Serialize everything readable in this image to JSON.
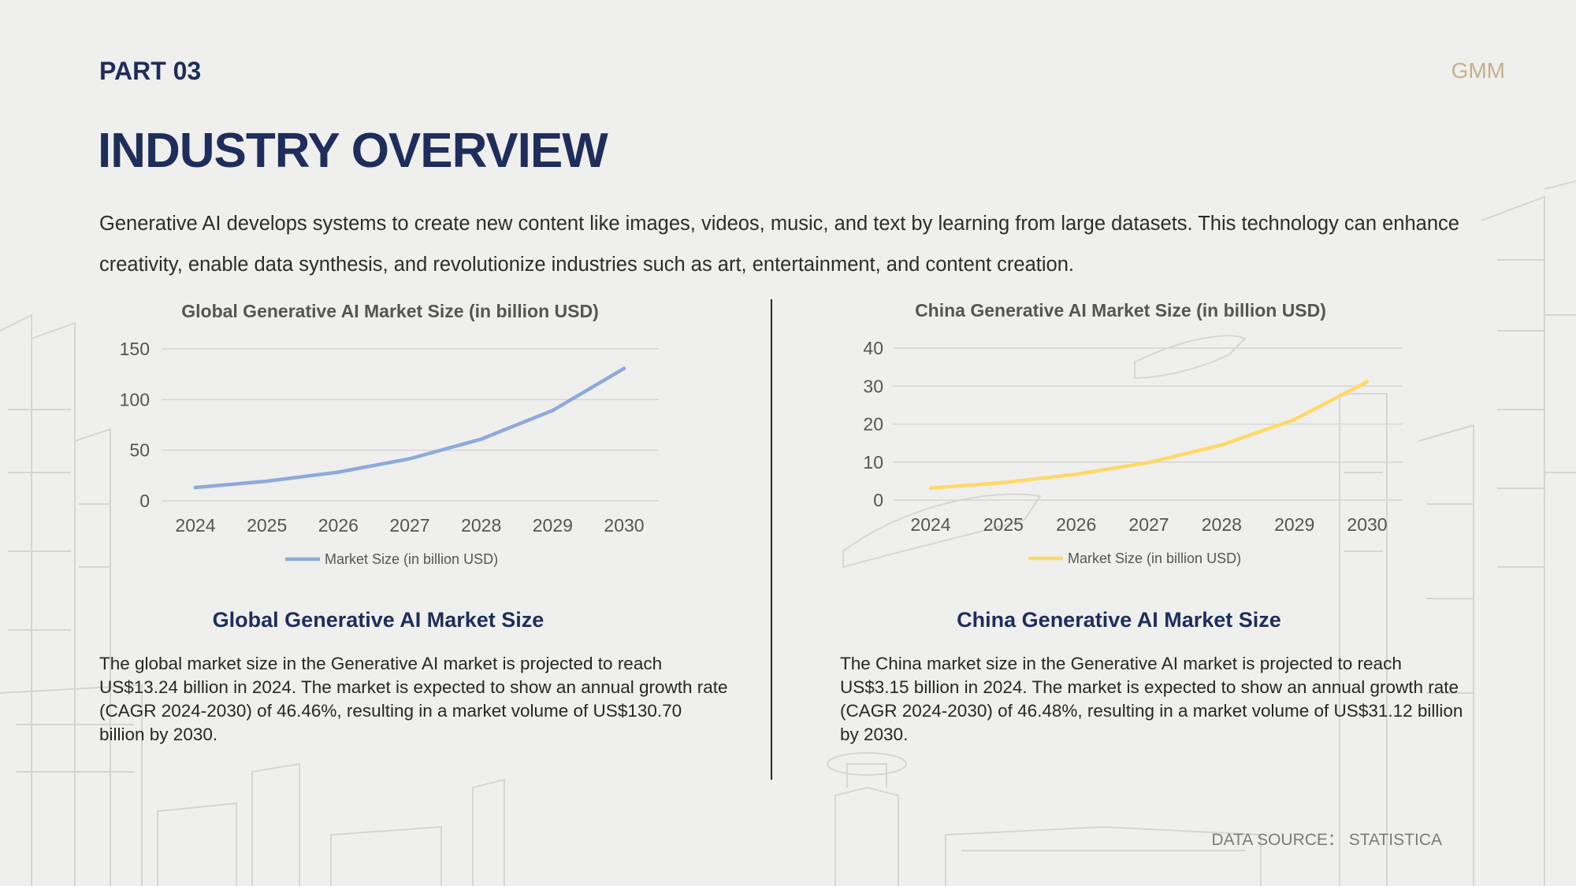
{
  "header": {
    "part_label": "PART 03",
    "brand": "GMM",
    "title": "INDUSTRY OVERVIEW"
  },
  "intro": "Generative AI develops systems to create new content like images, videos, music, and text by learning from large datasets. This technology can enhance creativity, enable data synthesis, and revolutionize industries such as art, entertainment, and content creation.",
  "colors": {
    "heading": "#1f2d5c",
    "brand": "#c5b08a",
    "global_series": "#8eaadb",
    "china_series": "#ffd966"
  },
  "sections": {
    "global": {
      "title": "Global Generative AI Market Size",
      "description": "The global market size in the Generative AI market is projected to reach US$13.24 billion in 2024. The market is expected to show an annual growth rate (CAGR 2024-2030) of 46.46%, resulting in a market volume of US$130.70 billion by 2030."
    },
    "china": {
      "title": "China Generative AI Market Size",
      "description": "The China market size in the Generative AI market is projected to reach US$3.15 billion in 2024. The market is expected to show an annual growth rate (CAGR 2024-2030) of 46.48%, resulting in a market volume of US$31.12 billion by 2030."
    }
  },
  "footer": {
    "source": "DATA SOURCE： STATISTICA"
  },
  "chart_data": [
    {
      "type": "line",
      "title": "Global Generative AI Market Size (in billion USD)",
      "xlabel": "",
      "ylabel": "",
      "categories": [
        "2024",
        "2025",
        "2026",
        "2027",
        "2028",
        "2029",
        "2030"
      ],
      "series": [
        {
          "name": "Market Size (in billion USD)",
          "color": "#8eaadb",
          "values": [
            13.24,
            19.4,
            28.4,
            41.6,
            60.9,
            89.2,
            130.7
          ]
        }
      ],
      "yticks": [
        0,
        50,
        100,
        150
      ],
      "ylim": [
        0,
        150
      ],
      "grid": true,
      "legend": "bottom"
    },
    {
      "type": "line",
      "title": "China Generative AI Market Size (in billion USD)",
      "xlabel": "",
      "ylabel": "",
      "categories": [
        "2024",
        "2025",
        "2026",
        "2027",
        "2028",
        "2029",
        "2030"
      ],
      "series": [
        {
          "name": "Market Size (in billion USD)",
          "color": "#ffd966",
          "values": [
            3.15,
            4.6,
            6.8,
            9.9,
            14.5,
            21.2,
            31.12
          ]
        }
      ],
      "yticks": [
        0,
        10,
        20,
        30,
        40
      ],
      "ylim": [
        0,
        40
      ],
      "grid": true,
      "legend": "bottom"
    }
  ]
}
